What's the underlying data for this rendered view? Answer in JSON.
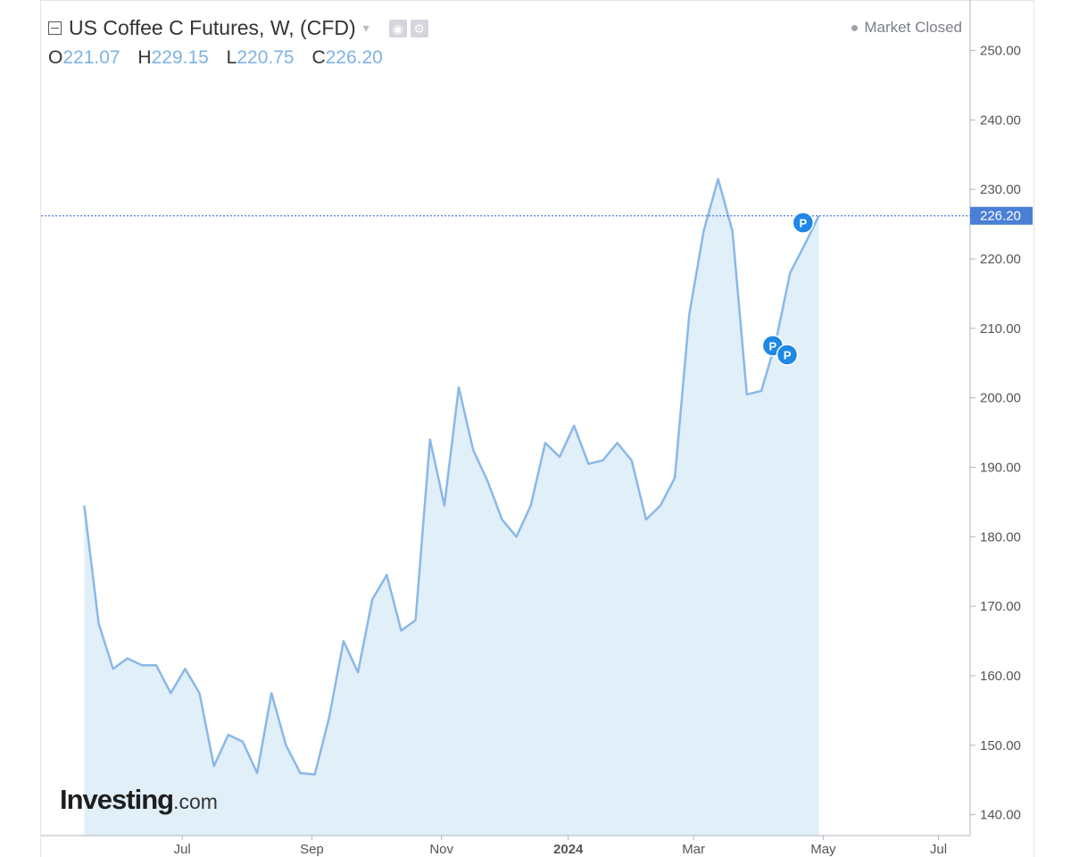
{
  "header": {
    "title": "US Coffee C Futures, W, (CFD)",
    "market_status": "Market Closed",
    "ohlc": {
      "o_label": "O",
      "o_value": "221.07",
      "h_label": "H",
      "h_value": "229.15",
      "l_label": "L",
      "l_value": "220.75",
      "c_label": "C",
      "c_value": "226.20"
    }
  },
  "logo": {
    "main": "Investing",
    "tld": ".com"
  },
  "colors": {
    "line": "#8ab8e8",
    "fill": "#e1eff9",
    "price_tag": "#4a7fd6",
    "marker": "#1e88e5",
    "axis_text": "#555555"
  },
  "chart_data": {
    "type": "area",
    "title": "US Coffee C Futures, W, (CFD)",
    "ylim": [
      137,
      257
    ],
    "y_ticks": [
      "140.00",
      "150.00",
      "160.00",
      "170.00",
      "180.00",
      "190.00",
      "200.00",
      "210.00",
      "220.00",
      "230.00",
      "240.00",
      "250.00"
    ],
    "x_tick_labels": [
      "Jul",
      "Sep",
      "Nov",
      "2024",
      "Mar",
      "May",
      "Jul"
    ],
    "x_tick_weeks": [
      6.8,
      15.8,
      24.8,
      33.6,
      42.3,
      51.3,
      59.3
    ],
    "x_range_weeks": [
      -3,
      61.5
    ],
    "last_price": "226.20",
    "last_value": 226.2,
    "values": [
      184.5,
      167.5,
      161,
      162.5,
      161.5,
      161.5,
      157.5,
      161,
      157.5,
      147,
      151.5,
      150.5,
      146,
      157.5,
      150,
      146,
      145.8,
      154,
      165,
      160.5,
      171,
      174.5,
      166.5,
      168,
      194,
      184.5,
      201.5,
      192.5,
      188,
      182.5,
      180,
      184.5,
      193.5,
      191.5,
      196,
      190.5,
      191,
      193.5,
      191,
      182.5,
      184.5,
      188.5,
      212,
      224,
      231.5,
      224,
      200.5,
      201,
      208,
      218,
      222,
      226.2
    ],
    "annotations": [
      {
        "label": "P",
        "week": 47.8,
        "value": 207.5
      },
      {
        "label": "P",
        "week": 48.8,
        "value": 206.2
      },
      {
        "label": "P",
        "week": 49.9,
        "value": 225.2
      }
    ]
  }
}
